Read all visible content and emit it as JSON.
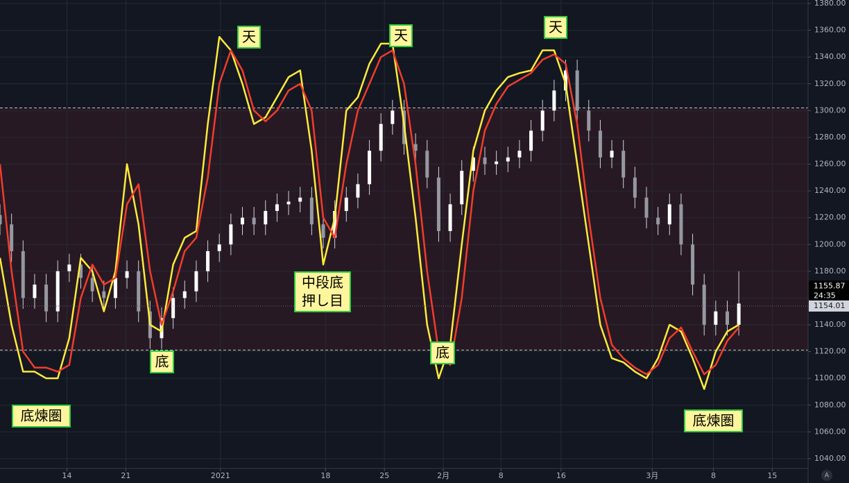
{
  "chart_data": {
    "type": "candlestick",
    "x": [
      0,
      1,
      2,
      3,
      4,
      5,
      6,
      7,
      8,
      9,
      10,
      11,
      12,
      13,
      14,
      15,
      16,
      17,
      18,
      19,
      20,
      21,
      22,
      23,
      24,
      25,
      26,
      27,
      28,
      29,
      30,
      31,
      32,
      33,
      34,
      35,
      36,
      37,
      38,
      39,
      40,
      41,
      42,
      43,
      44,
      45,
      46,
      47,
      48,
      49,
      50,
      51,
      52,
      53,
      54,
      55,
      56,
      57,
      58,
      59,
      60,
      61,
      62,
      63,
      64
    ],
    "open": [
      1222,
      1215,
      1195,
      1160,
      1170,
      1150,
      1180,
      1185,
      1175,
      1165,
      1160,
      1175,
      1180,
      1150,
      1130,
      1145,
      1160,
      1165,
      1180,
      1195,
      1200,
      1215,
      1220,
      1215,
      1225,
      1230,
      1232,
      1235,
      1215,
      1205,
      1225,
      1235,
      1245,
      1270,
      1290,
      1300,
      1275,
      1270,
      1250,
      1210,
      1230,
      1255,
      1265,
      1260,
      1262,
      1265,
      1270,
      1285,
      1300,
      1315,
      1330,
      1300,
      1285,
      1265,
      1270,
      1250,
      1235,
      1220,
      1215,
      1230,
      1200,
      1170,
      1140,
      1150,
      1140
    ],
    "high": [
      1230,
      1223,
      1203,
      1178,
      1178,
      1188,
      1193,
      1193,
      1183,
      1173,
      1183,
      1188,
      1188,
      1158,
      1153,
      1168,
      1173,
      1188,
      1203,
      1208,
      1223,
      1228,
      1228,
      1233,
      1238,
      1240,
      1243,
      1243,
      1223,
      1233,
      1243,
      1253,
      1278,
      1298,
      1308,
      1308,
      1283,
      1278,
      1258,
      1238,
      1263,
      1273,
      1273,
      1270,
      1273,
      1278,
      1293,
      1308,
      1323,
      1338,
      1338,
      1308,
      1293,
      1278,
      1278,
      1258,
      1243,
      1228,
      1238,
      1238,
      1208,
      1178,
      1158,
      1158,
      1180
    ],
    "low": [
      1207,
      1187,
      1152,
      1152,
      1142,
      1142,
      1172,
      1167,
      1157,
      1152,
      1152,
      1167,
      1142,
      1122,
      1122,
      1137,
      1152,
      1157,
      1172,
      1187,
      1192,
      1207,
      1207,
      1207,
      1217,
      1222,
      1224,
      1207,
      1197,
      1197,
      1217,
      1227,
      1237,
      1262,
      1282,
      1267,
      1262,
      1242,
      1202,
      1202,
      1222,
      1247,
      1252,
      1252,
      1254,
      1257,
      1262,
      1277,
      1292,
      1307,
      1292,
      1277,
      1257,
      1257,
      1242,
      1227,
      1212,
      1207,
      1207,
      1192,
      1162,
      1132,
      1132,
      1132,
      1132
    ],
    "close": [
      1215,
      1195,
      1160,
      1170,
      1150,
      1180,
      1185,
      1175,
      1165,
      1160,
      1175,
      1180,
      1150,
      1130,
      1145,
      1160,
      1165,
      1180,
      1195,
      1200,
      1215,
      1220,
      1215,
      1225,
      1230,
      1232,
      1235,
      1215,
      1205,
      1225,
      1235,
      1245,
      1270,
      1290,
      1300,
      1275,
      1270,
      1250,
      1210,
      1230,
      1255,
      1265,
      1260,
      1262,
      1265,
      1270,
      1285,
      1300,
      1315,
      1330,
      1300,
      1285,
      1265,
      1270,
      1250,
      1235,
      1220,
      1215,
      1230,
      1200,
      1170,
      1140,
      1150,
      1140,
      1155.87
    ],
    "series": [
      {
        "color": "#ffeb3b",
        "values": [
          1190,
          1140,
          1105,
          1105,
          1100,
          1100,
          1130,
          1190,
          1180,
          1150,
          1180,
          1260,
          1215,
          1140,
          1135,
          1185,
          1205,
          1210,
          1290,
          1355,
          1345,
          1320,
          1290,
          1295,
          1310,
          1325,
          1330,
          1270,
          1185,
          1220,
          1300,
          1310,
          1335,
          1350,
          1350,
          1290,
          1220,
          1140,
          1100,
          1125,
          1200,
          1270,
          1300,
          1315,
          1325,
          1328,
          1330,
          1345,
          1345,
          1320,
          1260,
          1200,
          1140,
          1115,
          1112,
          1105,
          1100,
          1115,
          1140,
          1135,
          1115,
          1092,
          1120,
          1135,
          1140
        ]
      },
      {
        "color": "#f23c2a",
        "values": [
          1260,
          1180,
          1120,
          1108,
          1108,
          1105,
          1110,
          1160,
          1185,
          1170,
          1175,
          1230,
          1245,
          1180,
          1140,
          1165,
          1195,
          1205,
          1250,
          1320,
          1345,
          1330,
          1300,
          1292,
          1300,
          1315,
          1320,
          1300,
          1220,
          1205,
          1260,
          1300,
          1320,
          1340,
          1345,
          1320,
          1260,
          1180,
          1120,
          1110,
          1160,
          1240,
          1285,
          1305,
          1318,
          1323,
          1328,
          1338,
          1342,
          1335,
          1290,
          1220,
          1160,
          1125,
          1115,
          1108,
          1103,
          1110,
          1130,
          1138,
          1120,
          1103,
          1110,
          1128,
          1138
        ]
      }
    ],
    "bands": [
      1302,
      1121
    ],
    "xlim": [
      0,
      70
    ],
    "xticks": [
      {
        "value": 5.8,
        "label": "14"
      },
      {
        "value": 10.9,
        "label": "21"
      },
      {
        "value": 19.1,
        "label": "2021"
      },
      {
        "value": 28.2,
        "label": "18"
      },
      {
        "value": 33.3,
        "label": "25"
      },
      {
        "value": 38.4,
        "label": "2月"
      },
      {
        "value": 43.4,
        "label": "8"
      },
      {
        "value": 48.6,
        "label": "16"
      },
      {
        "value": 56.5,
        "label": "3月"
      },
      {
        "value": 61.8,
        "label": "8"
      },
      {
        "value": 66.9,
        "label": "15"
      }
    ],
    "ylim": [
      1032.7,
      1382.6
    ],
    "yticks": [
      {
        "value": 1040,
        "label": "1040.00"
      },
      {
        "value": 1060,
        "label": "1060.00"
      },
      {
        "value": 1080,
        "label": "1080.00"
      },
      {
        "value": 1100,
        "label": "1100.00"
      },
      {
        "value": 1120,
        "label": "1120.00"
      },
      {
        "value": 1140,
        "label": "1140.00"
      },
      {
        "value": 1160,
        "label": "1160.00"
      },
      {
        "value": 1180,
        "label": "1180.00"
      },
      {
        "value": 1200,
        "label": "1200.00"
      },
      {
        "value": 1220,
        "label": "1220.00"
      },
      {
        "value": 1240,
        "label": "1240.00"
      },
      {
        "value": 1260,
        "label": "1260.00"
      },
      {
        "value": 1280,
        "label": "1280.00"
      },
      {
        "value": 1300,
        "label": "1300.00"
      },
      {
        "value": 1320,
        "label": "1320.00"
      },
      {
        "value": 1340,
        "label": "1340.00"
      },
      {
        "value": 1360,
        "label": "1360.00"
      },
      {
        "value": 1380,
        "label": "1380.00"
      }
    ],
    "grid": true,
    "last_price": 1155.87,
    "countdown": "24:35",
    "other_price": 1154.01,
    "annotations": [
      "天",
      "天",
      "天",
      "中段底\n押し目",
      "底",
      "底",
      "底煉圏",
      "底煉圏"
    ],
    "corner_button": "A"
  }
}
